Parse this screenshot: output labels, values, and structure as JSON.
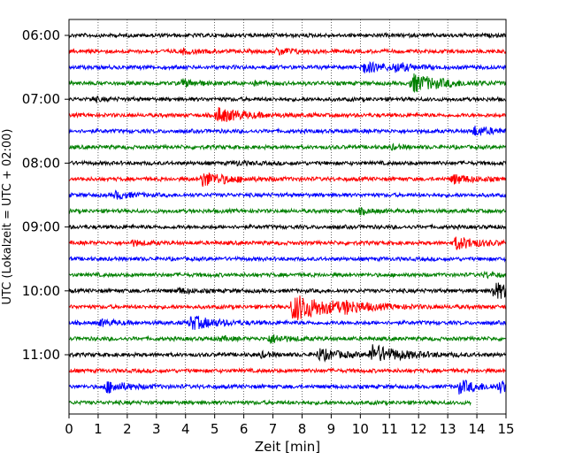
{
  "chart_data": {
    "type": "line",
    "title": "",
    "xlabel": "Zeit  [min]",
    "ylabel": "UTC (Lokalzeit = UTC + 02:00)",
    "xlim": [
      0,
      15
    ],
    "x_ticks": [
      0,
      1,
      2,
      3,
      4,
      5,
      6,
      7,
      8,
      9,
      10,
      11,
      12,
      13,
      14,
      15
    ],
    "y_tick_labels": [
      "06:00",
      "07:00",
      "08:00",
      "09:00",
      "10:00",
      "11:00"
    ],
    "trace_start": "06:00",
    "trace_interval_min": 15,
    "trace_count": 24,
    "grid_x": true,
    "colors": [
      "#000000",
      "#ff0000",
      "#0000ff",
      "#008000"
    ],
    "series": [
      {
        "start": "06:00",
        "color": "#000000",
        "events": []
      },
      {
        "start": "06:15",
        "color": "#ff0000",
        "events": [
          {
            "t": 3.9,
            "a": 0.4
          },
          {
            "t": 7.2,
            "a": 0.6
          }
        ]
      },
      {
        "start": "06:30",
        "color": "#0000ff",
        "events": [
          {
            "t": 10.1,
            "a": 1.0
          },
          {
            "t": 11.2,
            "a": 0.6
          }
        ]
      },
      {
        "start": "06:45",
        "color": "#008000",
        "events": [
          {
            "t": 3.9,
            "a": 0.6
          },
          {
            "t": 6.4,
            "a": 0.3
          },
          {
            "t": 11.8,
            "a": 1.6
          }
        ]
      },
      {
        "start": "07:00",
        "color": "#000000",
        "events": [
          {
            "t": 0.8,
            "a": 0.3
          }
        ]
      },
      {
        "start": "07:15",
        "color": "#ff0000",
        "events": [
          {
            "t": 5.1,
            "a": 1.3
          }
        ]
      },
      {
        "start": "07:30",
        "color": "#0000ff",
        "events": [
          {
            "t": 13.9,
            "a": 0.8
          }
        ]
      },
      {
        "start": "07:45",
        "color": "#008000",
        "events": [
          {
            "t": 11.1,
            "a": 0.3
          }
        ]
      },
      {
        "start": "08:00",
        "color": "#000000",
        "events": [
          {
            "t": 5.7,
            "a": 0.3
          }
        ]
      },
      {
        "start": "08:15",
        "color": "#ff0000",
        "events": [
          {
            "t": 4.6,
            "a": 1.3
          },
          {
            "t": 13.2,
            "a": 0.8
          }
        ]
      },
      {
        "start": "08:30",
        "color": "#0000ff",
        "events": [
          {
            "t": 1.6,
            "a": 0.6
          }
        ]
      },
      {
        "start": "08:45",
        "color": "#008000",
        "events": [
          {
            "t": 10.0,
            "a": 0.4
          }
        ]
      },
      {
        "start": "09:00",
        "color": "#000000",
        "events": []
      },
      {
        "start": "09:15",
        "color": "#ff0000",
        "events": [
          {
            "t": 2.2,
            "a": 0.4
          },
          {
            "t": 13.3,
            "a": 1.1
          }
        ]
      },
      {
        "start": "09:30",
        "color": "#0000ff",
        "events": []
      },
      {
        "start": "09:45",
        "color": "#008000",
        "events": [
          {
            "t": 14.3,
            "a": 0.4
          }
        ]
      },
      {
        "start": "10:00",
        "color": "#000000",
        "events": [
          {
            "t": 3.8,
            "a": 0.4
          },
          {
            "t": 14.6,
            "a": 1.4
          }
        ]
      },
      {
        "start": "10:15",
        "color": "#ff0000",
        "events": [
          {
            "t": 7.7,
            "a": 2.4
          },
          {
            "t": 9.5,
            "a": 0.6
          }
        ]
      },
      {
        "start": "10:30",
        "color": "#0000ff",
        "events": [
          {
            "t": 1.1,
            "a": 0.5
          },
          {
            "t": 4.2,
            "a": 1.2
          }
        ]
      },
      {
        "start": "10:45",
        "color": "#008000",
        "events": [
          {
            "t": 5.2,
            "a": 0.3
          },
          {
            "t": 6.9,
            "a": 0.7
          }
        ]
      },
      {
        "start": "11:00",
        "color": "#000000",
        "events": [
          {
            "t": 6.6,
            "a": 0.4
          },
          {
            "t": 8.6,
            "a": 1.0
          },
          {
            "t": 10.4,
            "a": 1.6
          }
        ]
      },
      {
        "start": "11:15",
        "color": "#ff0000",
        "events": []
      },
      {
        "start": "11:30",
        "color": "#0000ff",
        "events": [
          {
            "t": 1.3,
            "a": 1.0
          },
          {
            "t": 13.4,
            "a": 1.1
          },
          {
            "t": 14.8,
            "a": 0.8
          }
        ]
      },
      {
        "start": "11:45",
        "color": "#008000",
        "events": [],
        "end_min": 13.8
      }
    ]
  }
}
